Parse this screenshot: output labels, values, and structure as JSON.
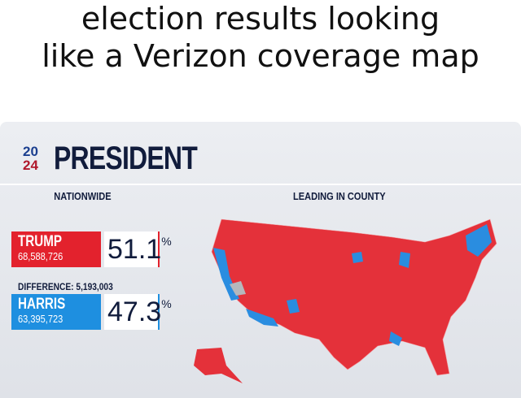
{
  "caption": [
    "election results looking",
    "like a Verizon coverage map"
  ],
  "header": {
    "logo_top": "20",
    "logo_bottom": "24",
    "title": "PRESIDENT"
  },
  "columns": [
    "NATIONWIDE",
    "LEADING IN COUNTY"
  ],
  "candidates": [
    {
      "name": "TRUMP",
      "votes": "68,588,726",
      "percent": "51.1",
      "percent_sign": "%"
    },
    {
      "name": "HARRIS",
      "votes": "63,395,723",
      "percent": "47.3",
      "percent_sign": "%"
    }
  ],
  "difference": "DIFFERENCE: 5,193,003"
}
